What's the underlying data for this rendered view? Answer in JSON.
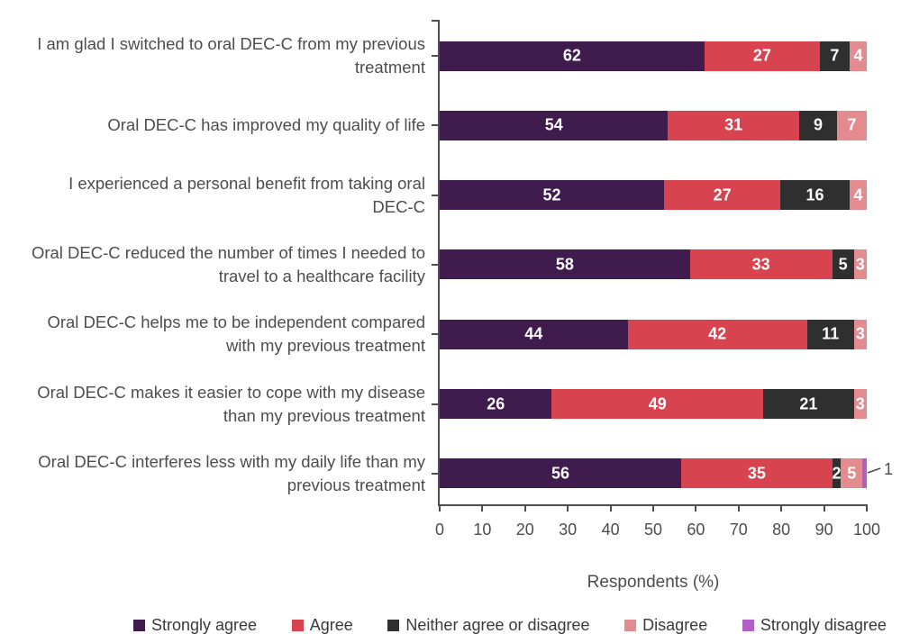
{
  "chart_data": {
    "type": "bar",
    "orientation": "horizontal",
    "stacked": true,
    "normalized_to_100": true,
    "title": "",
    "xlabel": "Respondents (%)",
    "xlim": [
      0,
      100
    ],
    "x_ticks": [
      0,
      10,
      20,
      30,
      40,
      50,
      60,
      70,
      80,
      90,
      100
    ],
    "legend_position": "bottom",
    "categories": [
      "I am glad I switched to oral DEC-C from my previous\ntreatment",
      "Oral DEC-C has improved my quality of life",
      "I experienced a personal benefit from taking oral\nDEC-C",
      "Oral DEC-C reduced the number of times I needed to\ntravel to a healthcare facility",
      "Oral DEC-C helps me to be independent compared\nwith my previous treatment",
      "Oral DEC-C makes it easier to cope with my disease\nthan my previous treatment",
      "Oral DEC-C interferes less with my daily life than my\nprevious treatment"
    ],
    "series": [
      {
        "name": "Strongly agree",
        "color": "#3f1b4e",
        "values": [
          62,
          54,
          52,
          58,
          44,
          26,
          56
        ]
      },
      {
        "name": "Agree",
        "color": "#d84350",
        "values": [
          27,
          31,
          27,
          33,
          42,
          49,
          35
        ]
      },
      {
        "name": "Neither agree or disagree",
        "color": "#2f2f2f",
        "values": [
          7,
          9,
          16,
          5,
          11,
          21,
          2
        ]
      },
      {
        "name": "Disagree",
        "color": "#e48b90",
        "values": [
          4,
          7,
          4,
          3,
          3,
          3,
          5
        ]
      },
      {
        "name": "Strongly disagree",
        "color": "#b15fc7",
        "values": [
          0,
          0,
          0,
          0,
          0,
          0,
          1
        ]
      }
    ],
    "outside_labels": [
      {
        "category_index": 6,
        "series_index": 4,
        "value": 1
      }
    ]
  },
  "colors": {
    "axis": "#4d4d4d",
    "text": "#4d4d4d",
    "legend_text": "#3a3a3a",
    "value_label": "#ffffff",
    "background": "#ffffff"
  }
}
